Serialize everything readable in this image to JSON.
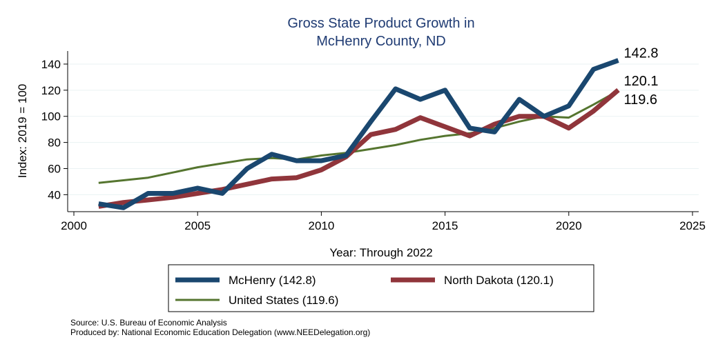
{
  "chart_data": {
    "type": "line",
    "title_lines": [
      "Gross State Product Growth in",
      "McHenry County, ND"
    ],
    "xlabel": "Year: Through 2022",
    "ylabel": "Index: 2019 = 100",
    "xlim": [
      2000,
      2025
    ],
    "ylim": [
      27,
      150
    ],
    "xticks": [
      2000,
      2005,
      2010,
      2015,
      2020,
      2025
    ],
    "yticks": [
      40,
      60,
      80,
      100,
      120,
      140
    ],
    "grid": true,
    "x": [
      2001,
      2002,
      2003,
      2004,
      2005,
      2006,
      2007,
      2008,
      2009,
      2010,
      2011,
      2012,
      2013,
      2014,
      2015,
      2016,
      2017,
      2018,
      2019,
      2020,
      2021,
      2022
    ],
    "series": [
      {
        "name": "McHenry",
        "legend_label": "McHenry  (142.8)",
        "end_label": "142.8",
        "color": "#1a476f",
        "values": [
          33,
          30,
          41,
          41,
          45,
          41,
          60,
          71,
          66,
          66,
          70,
          96,
          121,
          113,
          120,
          91,
          88,
          113,
          100,
          108,
          136,
          142.8
        ]
      },
      {
        "name": "North Dakota",
        "legend_label": "North Dakota (120.1)",
        "end_label": "120.1",
        "color": "#90353b",
        "values": [
          31,
          34,
          36,
          38,
          41,
          44,
          48,
          52,
          53,
          59,
          69,
          86,
          90,
          99,
          92,
          85,
          94,
          100,
          100,
          91,
          104,
          120.1
        ]
      },
      {
        "name": "United States",
        "legend_label": "United States (119.6)",
        "end_label": "119.6",
        "color": "#55752f",
        "values": [
          49,
          51,
          53,
          57,
          61,
          64,
          67,
          68,
          67,
          70,
          72,
          75,
          78,
          82,
          85,
          87,
          91,
          96,
          100,
          99,
          109,
          119.6
        ]
      }
    ]
  },
  "notes": {
    "source": "Source: U.S. Bureau of Economic Analysis",
    "produced_by": "Produced by: National Economic Education Delegation (www.NEEDelegation.org)"
  }
}
